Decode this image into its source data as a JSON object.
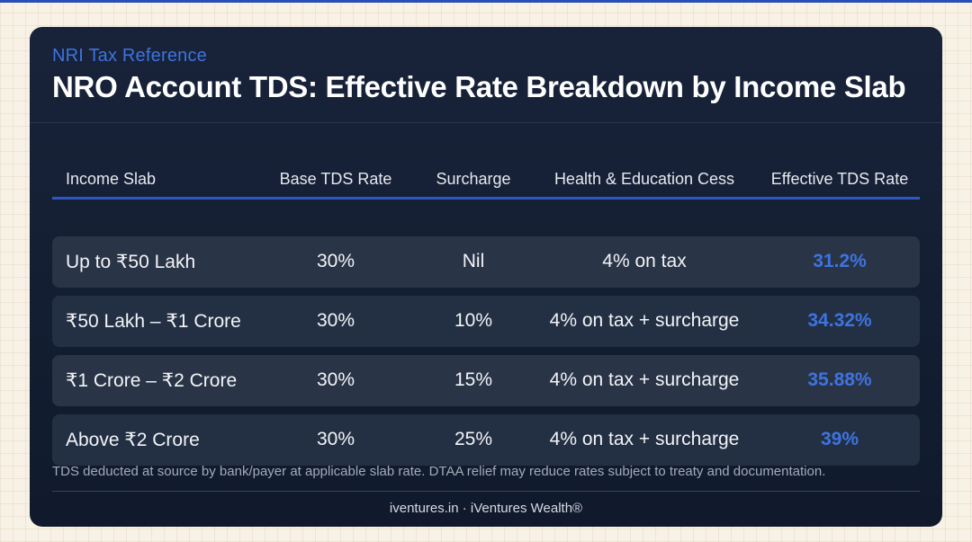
{
  "eyebrow": "NRI Tax Reference",
  "title": "NRO Account TDS: Effective Rate Breakdown by Income Slab",
  "table": {
    "headers": [
      "Income Slab",
      "Base TDS Rate",
      "Surcharge",
      "Health & Education Cess",
      "Effective TDS Rate"
    ],
    "rows": [
      [
        "Up to ₹50 Lakh",
        "30%",
        "Nil",
        "4% on tax",
        "31.2%"
      ],
      [
        "₹50 Lakh – ₹1 Crore",
        "30%",
        "10%",
        "4% on tax + surcharge",
        "34.32%"
      ],
      [
        "₹1 Crore – ₹2 Crore",
        "30%",
        "15%",
        "4% on tax + surcharge",
        "35.88%"
      ],
      [
        "Above ₹2 Crore",
        "30%",
        "25%",
        "4% on tax + surcharge",
        "39%"
      ]
    ]
  },
  "footnote": "TDS deducted at source by bank/payer at applicable slab rate. DTAA relief may reduce rates subject to treaty and documentation.",
  "credit": "iventures.in · iVentures Wealth®",
  "colors": {
    "accent": "#3d74e0",
    "card_background": "#141e33",
    "page_background": "#f8f1e6"
  }
}
